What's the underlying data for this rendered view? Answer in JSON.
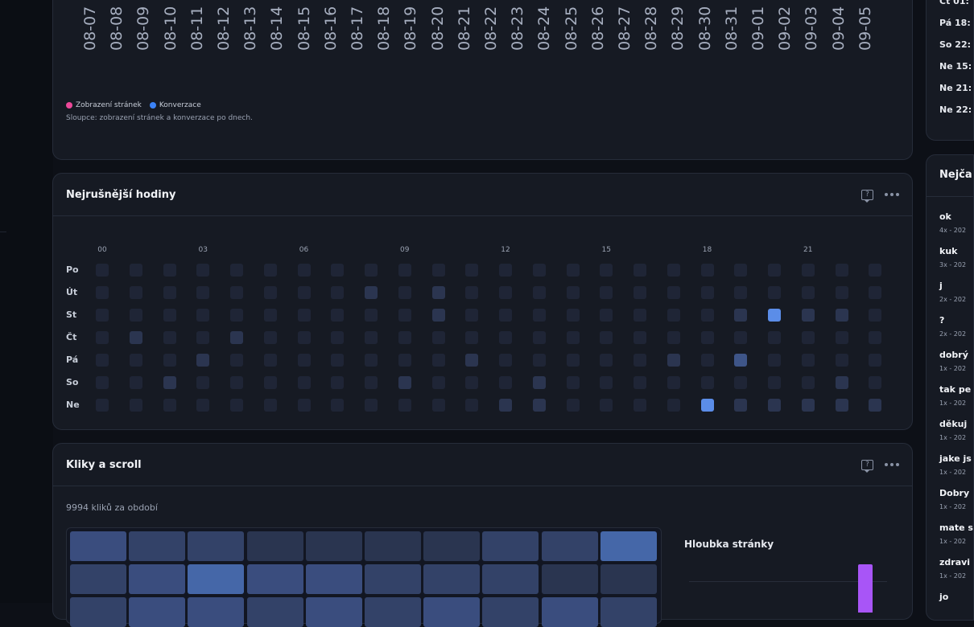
{
  "colors": {
    "pageviews": "#ec4899",
    "conversions": "#3b82f6",
    "heat_levels": [
      "#1f2536",
      "#2b3550",
      "#3e5588",
      "#5b8de8"
    ],
    "tile_levels": [
      "#2a3550",
      "#334268",
      "#3a4d7e",
      "#4567a8"
    ],
    "depth_bar": "#a855f7"
  },
  "traffic_chart": {
    "dates": [
      "08-07",
      "08-08",
      "08-09",
      "08-10",
      "08-11",
      "08-12",
      "08-13",
      "08-14",
      "08-15",
      "08-16",
      "08-17",
      "08-18",
      "08-19",
      "08-20",
      "08-21",
      "08-22",
      "08-23",
      "08-24",
      "08-25",
      "08-26",
      "08-27",
      "08-28",
      "08-29",
      "08-30",
      "08-31",
      "09-01",
      "09-02",
      "09-03",
      "09-04",
      "09-05"
    ],
    "legend": [
      "Zobrazení stránek",
      "Konverzace"
    ],
    "caption": "Sloupce: zobrazení stránek a konverzace po dnech."
  },
  "busiest_hours": {
    "title": "Nejrušnější hodiny",
    "hour_ticks": [
      "00",
      "03",
      "06",
      "09",
      "12",
      "15",
      "18",
      "21"
    ],
    "days": [
      "Po",
      "Út",
      "St",
      "Čt",
      "Pá",
      "So",
      "Ne"
    ],
    "levels": [
      [
        0,
        0,
        0,
        0,
        0,
        0,
        0,
        0,
        0,
        0,
        0,
        0,
        0,
        0,
        0,
        0,
        0,
        0,
        0,
        0,
        0,
        0,
        0,
        0
      ],
      [
        0,
        0,
        0,
        0,
        0,
        0,
        0,
        0,
        1,
        0,
        1,
        0,
        0,
        0,
        0,
        0,
        0,
        0,
        0,
        0,
        0,
        0,
        0,
        0
      ],
      [
        0,
        0,
        0,
        0,
        0,
        0,
        0,
        0,
        0,
        0,
        1,
        0,
        0,
        0,
        0,
        0,
        0,
        0,
        0,
        1,
        3,
        1,
        1,
        0
      ],
      [
        0,
        1,
        0,
        0,
        1,
        0,
        0,
        0,
        0,
        0,
        0,
        0,
        0,
        0,
        0,
        0,
        0,
        0,
        0,
        0,
        0,
        0,
        0,
        0
      ],
      [
        0,
        0,
        0,
        1,
        0,
        0,
        0,
        0,
        0,
        0,
        0,
        1,
        0,
        0,
        0,
        0,
        0,
        1,
        0,
        2,
        0,
        0,
        0,
        0
      ],
      [
        0,
        0,
        1,
        0,
        0,
        0,
        0,
        0,
        0,
        1,
        0,
        0,
        0,
        1,
        0,
        0,
        0,
        0,
        0,
        0,
        0,
        0,
        1,
        0
      ],
      [
        0,
        0,
        0,
        0,
        0,
        0,
        0,
        0,
        0,
        0,
        0,
        0,
        1,
        1,
        0,
        0,
        0,
        0,
        3,
        1,
        1,
        1,
        1,
        1
      ]
    ]
  },
  "clicks": {
    "title": "Kliky a scroll",
    "count_label": "9994 kliků za období",
    "depth_title": "Hloubka stránky",
    "tiles": [
      [
        2,
        1,
        1,
        0,
        0,
        0,
        0,
        1,
        1,
        3
      ],
      [
        1,
        2,
        3,
        2,
        2,
        1,
        1,
        1,
        0,
        0
      ],
      [
        1,
        2,
        2,
        1,
        2,
        1,
        2,
        1,
        2,
        1
      ]
    ]
  },
  "recent": {
    "items": [
      "Ct 01:",
      "Pá 18:",
      "So 22:",
      "Ne 15:",
      "Ne 21:",
      "Ne 22:"
    ]
  },
  "questions": {
    "title": "Nejča",
    "items": [
      {
        "text": "ok",
        "meta": "4x - 202"
      },
      {
        "text": "kuk",
        "meta": "3x - 202"
      },
      {
        "text": "j",
        "meta": "2x - 202"
      },
      {
        "text": "?",
        "meta": "2x - 202"
      },
      {
        "text": "dobrý",
        "meta": "1x - 202"
      },
      {
        "text": "tak pe",
        "meta": "1x - 202"
      },
      {
        "text": "děkuj",
        "meta": "1x - 202"
      },
      {
        "text": "jake js",
        "meta": "1x - 202"
      },
      {
        "text": "Dobry",
        "meta": "1x - 202"
      },
      {
        "text": "mate s",
        "meta": "1x - 202"
      },
      {
        "text": "zdravi",
        "meta": "1x - 202"
      },
      {
        "text": "jo",
        "meta": ""
      }
    ]
  }
}
